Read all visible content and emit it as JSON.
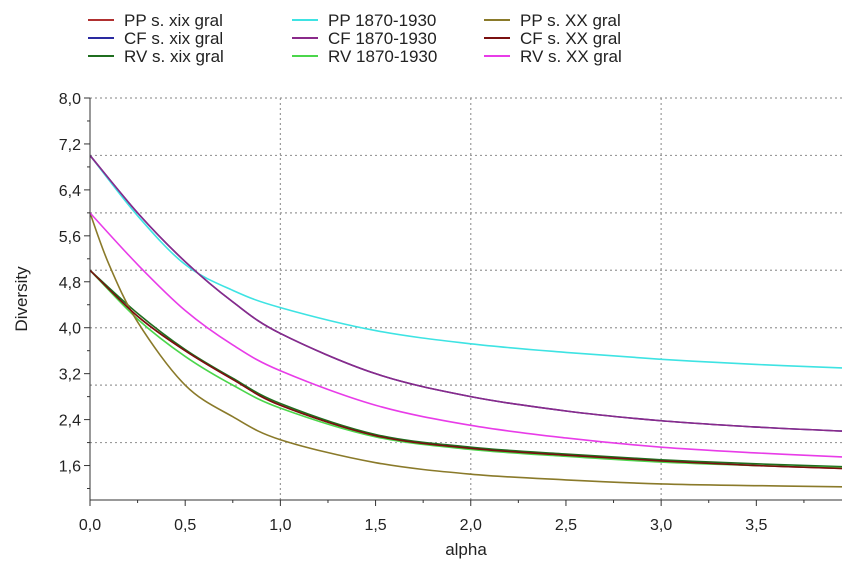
{
  "chart_data": {
    "type": "line",
    "xlabel": "alpha",
    "ylabel": "Diversity",
    "xlim": [
      0,
      3.95
    ],
    "ylim": [
      1.0,
      8.0
    ],
    "xticks": [
      {
        "v": 0.0,
        "label": "0,0"
      },
      {
        "v": 0.5,
        "label": "0,5"
      },
      {
        "v": 1.0,
        "label": "1,0"
      },
      {
        "v": 1.5,
        "label": "1,5"
      },
      {
        "v": 2.0,
        "label": "2,0"
      },
      {
        "v": 2.5,
        "label": "2,5"
      },
      {
        "v": 3.0,
        "label": "3,0"
      },
      {
        "v": 3.5,
        "label": "3,5"
      }
    ],
    "yticks": [
      {
        "v": 1.6,
        "label": "1,6"
      },
      {
        "v": 2.4,
        "label": "2,4"
      },
      {
        "v": 3.2,
        "label": "3,2"
      },
      {
        "v": 4.0,
        "label": "4,0"
      },
      {
        "v": 4.8,
        "label": "4,8"
      },
      {
        "v": 5.6,
        "label": "5,6"
      },
      {
        "v": 6.4,
        "label": "6,4"
      },
      {
        "v": 7.2,
        "label": "7,2"
      },
      {
        "v": 8.0,
        "label": "8,0"
      }
    ],
    "grid_x": [
      1,
      2,
      3
    ],
    "grid_y": [
      2,
      3,
      4,
      5,
      6,
      7,
      8
    ],
    "legend_position": "top-left, above plot, 3 columns",
    "series": [
      {
        "name": "PP s. xix gral",
        "color": "#b03030",
        "x": [
          0,
          0.25,
          0.5,
          0.75,
          1.0,
          1.5,
          2.0,
          2.5,
          3.0,
          3.5,
          3.95
        ],
        "y": [
          5.0,
          4.2,
          3.6,
          3.1,
          2.65,
          2.12,
          1.9,
          1.78,
          1.68,
          1.6,
          1.55
        ]
      },
      {
        "name": "CF s. xix gral",
        "color": "#2a2aa0",
        "x": [
          0,
          0.25,
          0.5,
          0.75,
          1.0,
          1.5,
          2.0,
          2.5,
          3.0,
          3.5,
          3.95
        ],
        "y": [
          7.0,
          6.0,
          5.15,
          4.45,
          3.9,
          3.2,
          2.8,
          2.55,
          2.38,
          2.27,
          2.2
        ]
      },
      {
        "name": "RV s. xix gral",
        "color": "#1f6e1f",
        "x": [
          0,
          0.25,
          0.5,
          0.75,
          1.0,
          1.5,
          2.0,
          2.5,
          3.0,
          3.5,
          3.95
        ],
        "y": [
          5.0,
          4.25,
          3.62,
          3.12,
          2.68,
          2.14,
          1.92,
          1.8,
          1.7,
          1.63,
          1.58
        ]
      },
      {
        "name": "PP 1870-1930",
        "color": "#3ee3e3",
        "x": [
          0,
          0.25,
          0.5,
          0.75,
          1.0,
          1.5,
          2.0,
          2.5,
          3.0,
          3.5,
          3.95
        ],
        "y": [
          7.0,
          5.95,
          5.1,
          4.65,
          4.35,
          3.95,
          3.72,
          3.57,
          3.45,
          3.36,
          3.3
        ]
      },
      {
        "name": "CF 1870-1930",
        "color": "#8a2a8a",
        "x": [
          0,
          0.25,
          0.5,
          0.75,
          1.0,
          1.5,
          2.0,
          2.5,
          3.0,
          3.5,
          3.95
        ],
        "y": [
          7.0,
          6.0,
          5.15,
          4.45,
          3.9,
          3.2,
          2.8,
          2.55,
          2.38,
          2.27,
          2.2
        ]
      },
      {
        "name": "RV 1870-1930",
        "color": "#4bd64b",
        "x": [
          0,
          0.25,
          0.5,
          0.75,
          1.0,
          1.5,
          2.0,
          2.5,
          3.0,
          3.5,
          3.95
        ],
        "y": [
          5.0,
          4.15,
          3.5,
          3.0,
          2.6,
          2.1,
          1.88,
          1.76,
          1.66,
          1.6,
          1.56
        ]
      },
      {
        "name": "PP s. XX gral",
        "color": "#8a7a2a",
        "x": [
          0,
          0.1,
          0.25,
          0.5,
          0.75,
          1.0,
          1.5,
          2.0,
          2.5,
          3.0,
          3.5,
          3.95
        ],
        "y": [
          6.0,
          5.1,
          4.1,
          3.0,
          2.45,
          2.05,
          1.65,
          1.45,
          1.35,
          1.28,
          1.25,
          1.23
        ]
      },
      {
        "name": "CF s. XX gral",
        "color": "#7a1010",
        "x": [
          0,
          0.25,
          0.5,
          0.75,
          1.0,
          1.5,
          2.0,
          2.5,
          3.0,
          3.5,
          3.95
        ],
        "y": [
          5.0,
          4.2,
          3.6,
          3.1,
          2.65,
          2.12,
          1.9,
          1.78,
          1.68,
          1.6,
          1.55
        ]
      },
      {
        "name": "RV s. XX gral",
        "color": "#e83ce8",
        "x": [
          0,
          0.25,
          0.5,
          0.75,
          1.0,
          1.5,
          2.0,
          2.5,
          3.0,
          3.5,
          3.95
        ],
        "y": [
          6.0,
          5.1,
          4.3,
          3.7,
          3.25,
          2.65,
          2.3,
          2.08,
          1.92,
          1.82,
          1.75
        ]
      }
    ]
  }
}
